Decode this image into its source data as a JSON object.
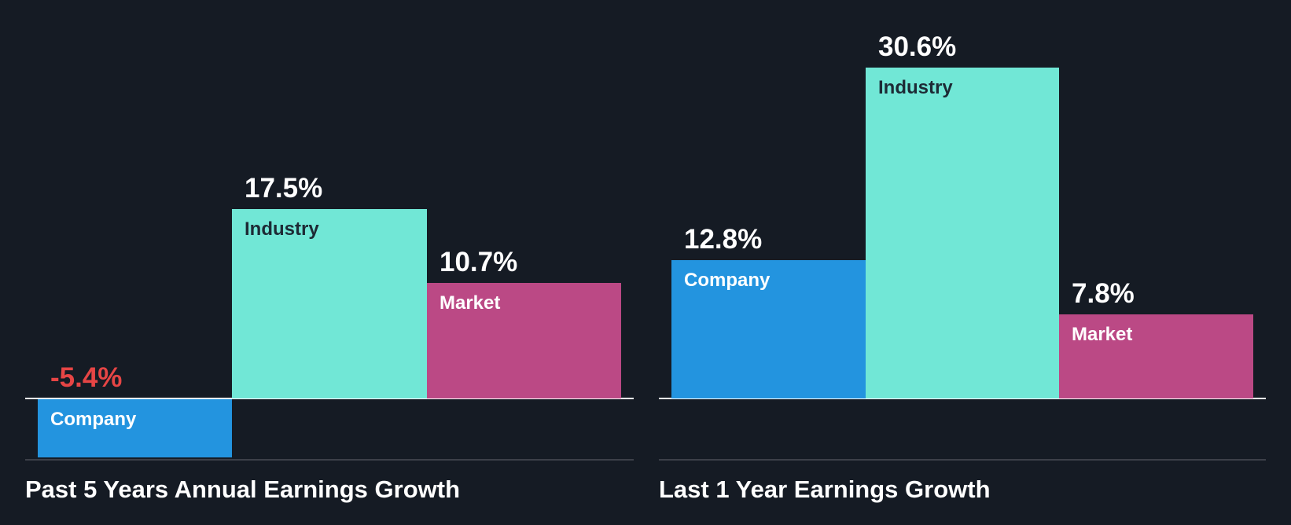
{
  "colors": {
    "background": "#151b24",
    "company": "#2394df",
    "industry": "#71e7d6",
    "market": "#bb4985",
    "negative_value": "#e64545",
    "positive_value": "#ffffff",
    "baseline": "#ffffff",
    "bottom_rule": "#3c4049"
  },
  "chart_data": [
    {
      "type": "bar",
      "title": "Past 5 Years Annual Earnings Growth",
      "categories": [
        "Company",
        "Industry",
        "Market"
      ],
      "values": [
        -5.4,
        17.5,
        10.7
      ],
      "value_labels": [
        "-5.4%",
        "17.5%",
        "10.7%"
      ],
      "unit": "%",
      "xlabel": "",
      "ylabel": "",
      "grid": false,
      "legend": "inline bar labels"
    },
    {
      "type": "bar",
      "title": "Last 1 Year Earnings Growth",
      "categories": [
        "Company",
        "Industry",
        "Market"
      ],
      "values": [
        12.8,
        30.6,
        7.8
      ],
      "value_labels": [
        "12.8%",
        "30.6%",
        "7.8%"
      ],
      "unit": "%",
      "xlabel": "",
      "ylabel": "",
      "grid": false,
      "legend": "inline bar labels"
    }
  ]
}
